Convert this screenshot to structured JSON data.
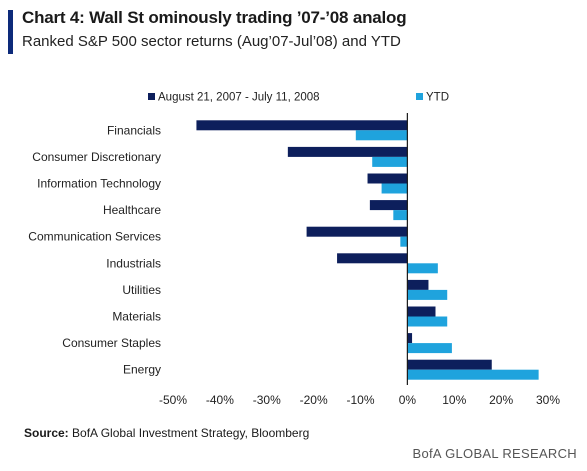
{
  "header": {
    "title": "Chart 4: Wall St ominously trading ’07-’08 analog",
    "subtitle": "Ranked S&P 500 sector returns (Aug’07-Jul’08) and YTD"
  },
  "footer": {
    "source_label": "Source:",
    "source_text": "BofA Global Investment Strategy, Bloomberg",
    "brand": "BofA GLOBAL RESEARCH"
  },
  "colors": {
    "accent": "#0d2a7a",
    "series1": "#0d1f5c",
    "series2": "#1fa3dd"
  },
  "chart_data": {
    "type": "bar",
    "orientation": "horizontal",
    "categories": [
      "Financials",
      "Consumer Discretionary",
      "Information Technology",
      "Healthcare",
      "Communication Services",
      "Industrials",
      "Utilities",
      "Materials",
      "Consumer Staples",
      "Energy"
    ],
    "series": [
      {
        "name": "August 21, 2007 - July 11, 2008",
        "color": "#0d1f5c",
        "values": [
          -45,
          -25.5,
          -8.5,
          -8,
          -21.5,
          -15,
          4.5,
          6,
          1,
          18
        ]
      },
      {
        "name": "YTD",
        "color": "#1fa3dd",
        "values": [
          -11,
          -7.5,
          -5.5,
          -3,
          -1.5,
          6.5,
          8.5,
          8.5,
          9.5,
          28
        ]
      }
    ],
    "xlim": [
      -50,
      30
    ],
    "xticks": [
      -50,
      -40,
      -30,
      -20,
      -10,
      0,
      10,
      20,
      30
    ],
    "xtick_labels": [
      "-50%",
      "-40%",
      "-30%",
      "-20%",
      "-10%",
      "0%",
      "10%",
      "20%",
      "30%"
    ],
    "legend_position": "top",
    "grid": false
  }
}
